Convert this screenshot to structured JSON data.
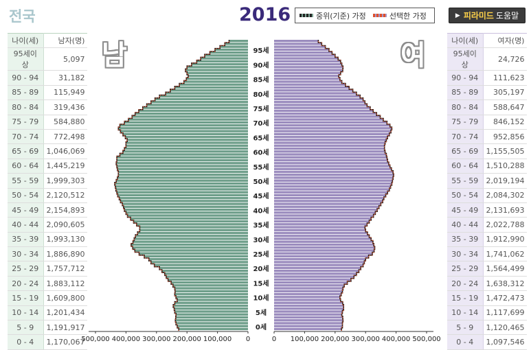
{
  "header": {
    "region": "전국",
    "year": "2016",
    "help_bold": "피라미드",
    "help_rest": "도움말"
  },
  "legend": {
    "median_label": "중위(기준) 가정",
    "selected_label": "선택한 가정"
  },
  "labels": {
    "male_big": "남",
    "female_big": "여"
  },
  "tables": {
    "age_header": "나이(세)",
    "male_header": "남자(명)",
    "female_header": "여자(명)",
    "rows": [
      {
        "age": "95세이상",
        "male": "5,097",
        "female": "24,726"
      },
      {
        "age": "90 - 94",
        "male": "31,182",
        "female": "111,623"
      },
      {
        "age": "85 - 89",
        "male": "115,949",
        "female": "305,197"
      },
      {
        "age": "80 - 84",
        "male": "319,436",
        "female": "588,647"
      },
      {
        "age": "75 - 79",
        "male": "584,880",
        "female": "846,152"
      },
      {
        "age": "70 - 74",
        "male": "772,498",
        "female": "952,856"
      },
      {
        "age": "65 - 69",
        "male": "1,046,069",
        "female": "1,155,505"
      },
      {
        "age": "60 - 64",
        "male": "1,445,219",
        "female": "1,510,288"
      },
      {
        "age": "55 - 59",
        "male": "1,999,303",
        "female": "2,019,194"
      },
      {
        "age": "50 - 54",
        "male": "2,120,512",
        "female": "2,084,302"
      },
      {
        "age": "45 - 49",
        "male": "2,154,893",
        "female": "2,131,693"
      },
      {
        "age": "40 - 44",
        "male": "2,090,605",
        "female": "2,022,788"
      },
      {
        "age": "35 - 39",
        "male": "1,993,130",
        "female": "1,912,990"
      },
      {
        "age": "30 - 34",
        "male": "1,886,890",
        "female": "1,741,062"
      },
      {
        "age": "25 - 29",
        "male": "1,757,712",
        "female": "1,564,499"
      },
      {
        "age": "20 - 24",
        "male": "1,883,112",
        "female": "1,638,312"
      },
      {
        "age": "15 - 19",
        "male": "1,609,800",
        "female": "1,472,473"
      },
      {
        "age": "10 - 14",
        "male": "1,201,434",
        "female": "1,117,699"
      },
      {
        "age": "5 - 9",
        "male": "1,191,917",
        "female": "1,120,465"
      },
      {
        "age": "0 - 4",
        "male": "1,170,067",
        "female": "1,097,546"
      }
    ]
  },
  "colors": {
    "male_bar": "#6e9e8a",
    "female_bar": "#9b8cbe",
    "median_line": "#1e1e1e",
    "selected_line": "#e0502a"
  },
  "chart_data": {
    "type": "bar",
    "orientation": "horizontal-pyramid",
    "x_ticks_left": [
      "500,000",
      "400,000",
      "300,000",
      "200,000",
      "100,000",
      "0"
    ],
    "x_ticks_right": [
      "0",
      "100,000",
      "200,000",
      "300,000",
      "400,000",
      "500,000"
    ],
    "y_ticks": [
      "0세",
      "5세",
      "10세",
      "15세",
      "20세",
      "25세",
      "30세",
      "35세",
      "40세",
      "45세",
      "50세",
      "55세",
      "60세",
      "65세",
      "70세",
      "75세",
      "80세",
      "85세",
      "90세",
      "95세"
    ],
    "xlim": [
      0,
      500000
    ],
    "ylim": [
      0,
      100
    ],
    "series": [
      {
        "name": "남",
        "values": [
          227000,
          232000,
          236000,
          238000,
          237000,
          236000,
          240000,
          242000,
          245000,
          240000,
          232000,
          236000,
          240000,
          239000,
          240000,
          246000,
          252000,
          262000,
          268000,
          273000,
          282000,
          290000,
          307000,
          318000,
          325000,
          340000,
          357000,
          371000,
          378000,
          383000,
          377000,
          373000,
          369000,
          362000,
          355000,
          355000,
          365000,
          375000,
          385000,
          395000,
          400000,
          405000,
          408000,
          412000,
          418000,
          422000,
          427000,
          430000,
          433000,
          435000,
          437000,
          432000,
          428000,
          425000,
          425000,
          428000,
          430000,
          432000,
          430000,
          430000,
          420000,
          410000,
          405000,
          400000,
          400000,
          396000,
          402000,
          410000,
          418000,
          425000,
          420000,
          405000,
          392000,
          380000,
          370000,
          358000,
          345000,
          332000,
          318000,
          305000,
          290000,
          270000,
          255000,
          240000,
          225000,
          210000,
          202000,
          196000,
          200000,
          205000,
          200000,
          185000,
          168000,
          155000,
          142000,
          125000,
          108000,
          92000,
          76000,
          62000
        ]
      },
      {
        "name": "여",
        "values": [
          221000,
          224000,
          224000,
          226000,
          225000,
          222000,
          224000,
          228000,
          228000,
          225000,
          218000,
          216000,
          220000,
          224000,
          226000,
          230000,
          240000,
          252000,
          262000,
          270000,
          278000,
          284000,
          292000,
          296000,
          300000,
          310000,
          322000,
          328000,
          330000,
          327000,
          324000,
          318000,
          312000,
          306000,
          300000,
          298000,
          305000,
          312000,
          318000,
          326000,
          332000,
          338000,
          344000,
          350000,
          356000,
          360000,
          366000,
          372000,
          378000,
          382000,
          386000,
          388000,
          390000,
          392000,
          390000,
          385000,
          380000,
          376000,
          372000,
          370000,
          368000,
          364000,
          362000,
          362000,
          364000,
          368000,
          372000,
          378000,
          383000,
          386000,
          380000,
          370000,
          358000,
          348000,
          336000,
          325000,
          315000,
          305000,
          298000,
          292000,
          282000,
          270000,
          258000,
          246000,
          234000,
          222000,
          216000,
          212000,
          218000,
          225000,
          226000,
          222000,
          218000,
          210000,
          200000,
          190000,
          180000,
          168000,
          156000,
          145000
        ]
      }
    ]
  }
}
